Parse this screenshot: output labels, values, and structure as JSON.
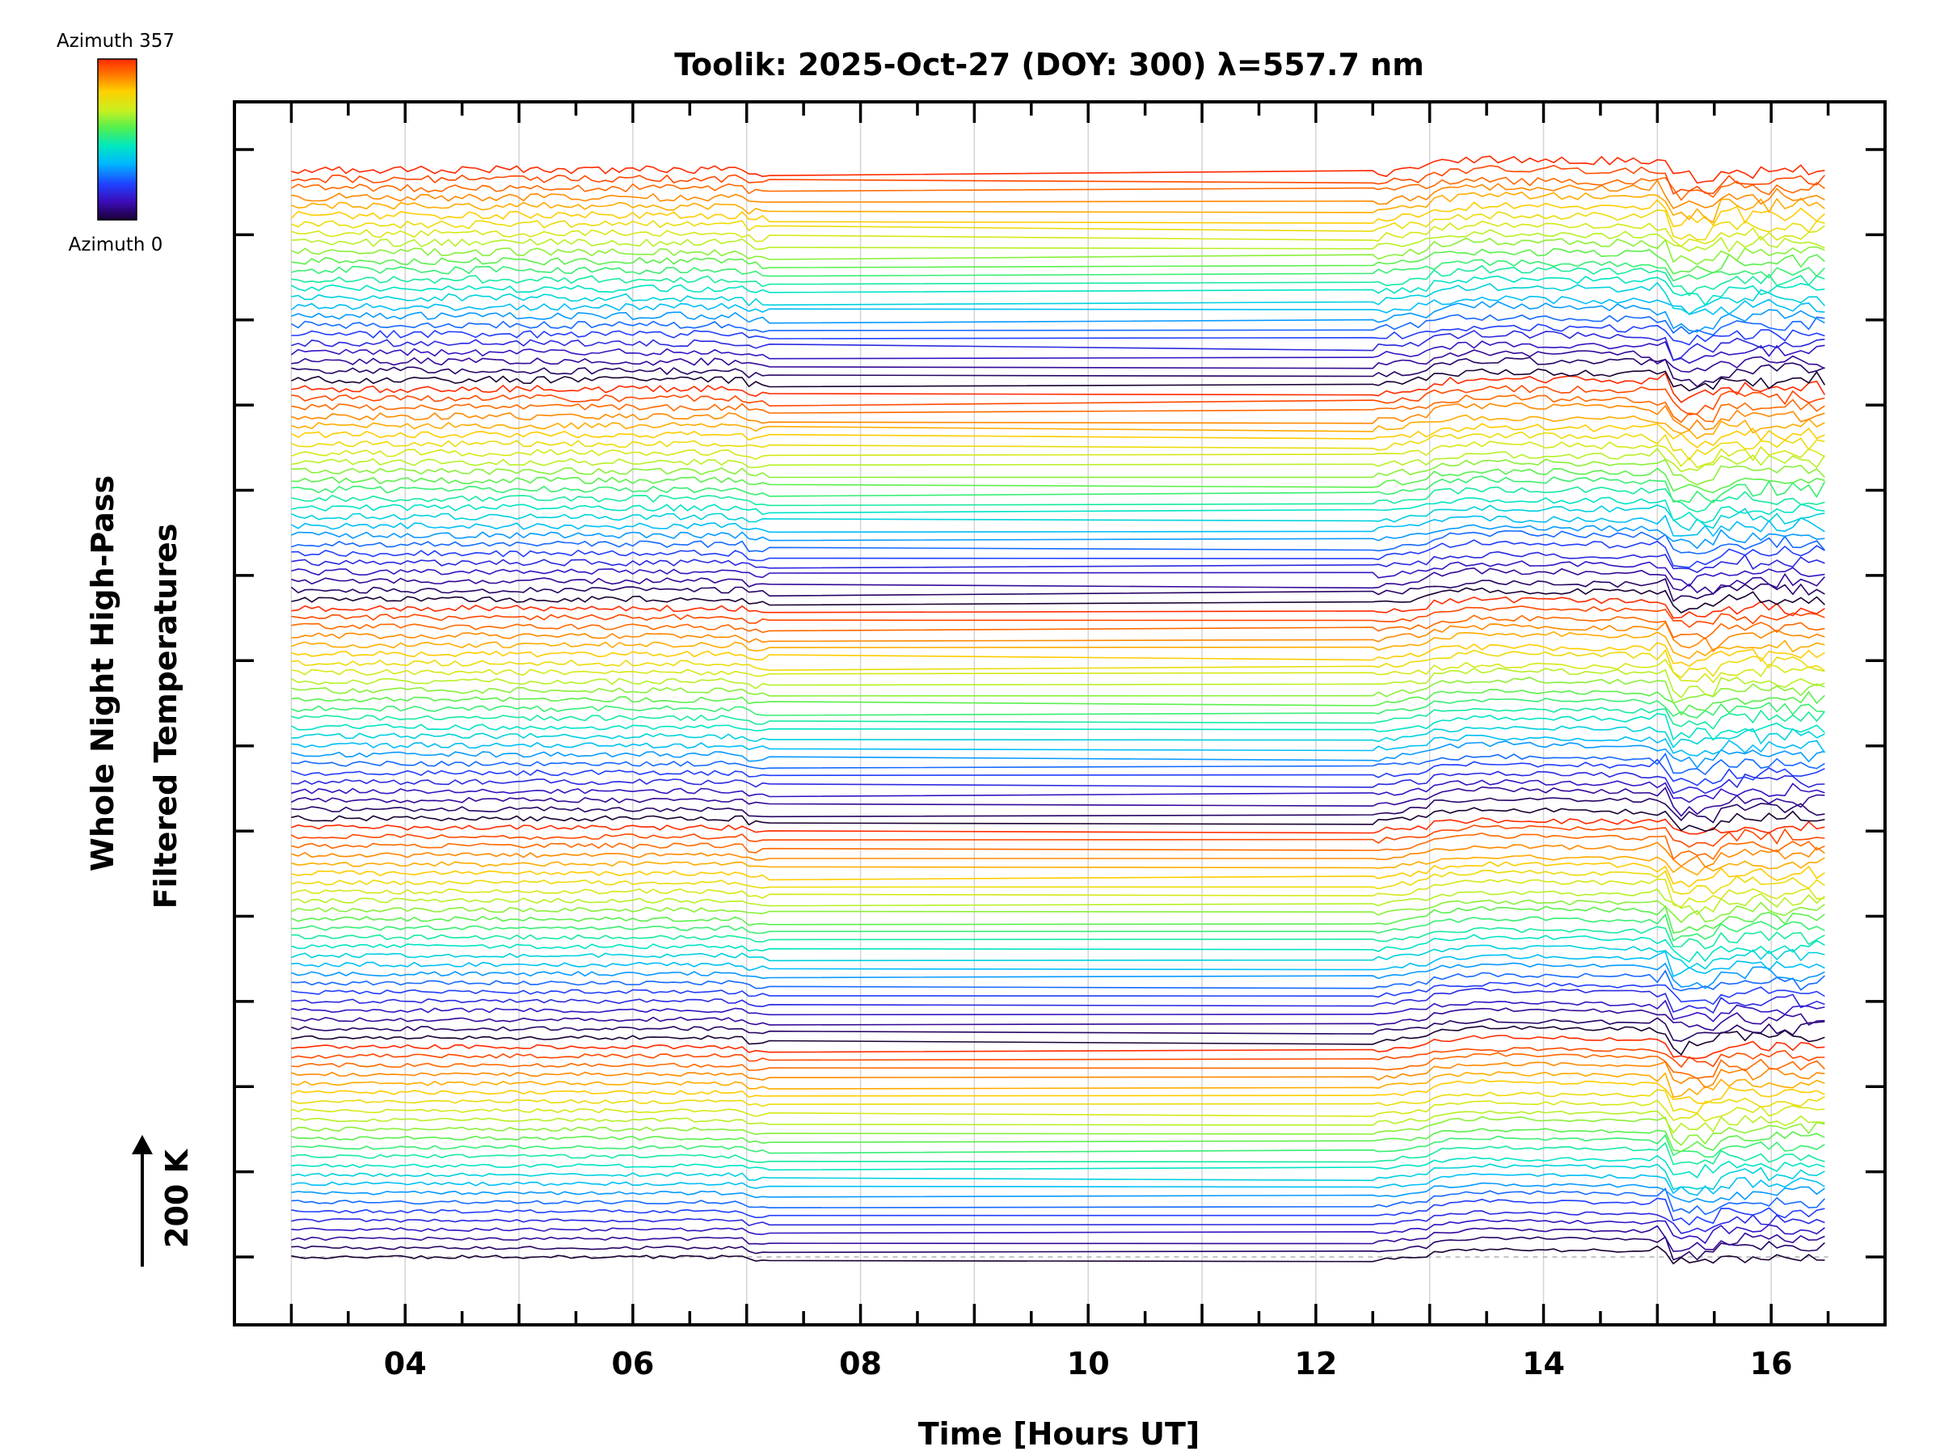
{
  "chart_data": {
    "type": "line",
    "title": "Toolik: 2025-Oct-27 (DOY: 300) λ=557.7 nm",
    "xlabel": "Time [Hours UT]",
    "ylabel_line1": "Whole Night High-Pass",
    "ylabel_line2": "Filtered Temperatures",
    "scale_label": "200 K",
    "xlim": [
      2.5,
      17.0
    ],
    "x_ticks": [
      4,
      6,
      8,
      10,
      12,
      14,
      16
    ],
    "x_tick_labels": [
      "04",
      "06",
      "08",
      "10",
      "12",
      "14",
      "16"
    ],
    "x_minor_step": 0.5,
    "grid_x": [
      3,
      4,
      5,
      6,
      7,
      8,
      9,
      10,
      11,
      12,
      13,
      14,
      15,
      16
    ],
    "data_start_hour": 3.0,
    "data_end_hour": 16.5,
    "data_gap_hours": [
      7.2,
      12.5
    ],
    "series_count": 120,
    "series_per_cycle": 24,
    "series_spacing_K": 30,
    "y_major_tick_count": 14,
    "colorbar": {
      "label_max": "Azimuth 357",
      "label_min": "Azimuth 0",
      "min": 0,
      "max": 357,
      "colormap": [
        "#1a0033",
        "#3b0bb5",
        "#2040ff",
        "#00b8ff",
        "#00e8c0",
        "#50f050",
        "#c8f020",
        "#ffd000",
        "#ff7a00",
        "#ff2a00"
      ]
    }
  }
}
